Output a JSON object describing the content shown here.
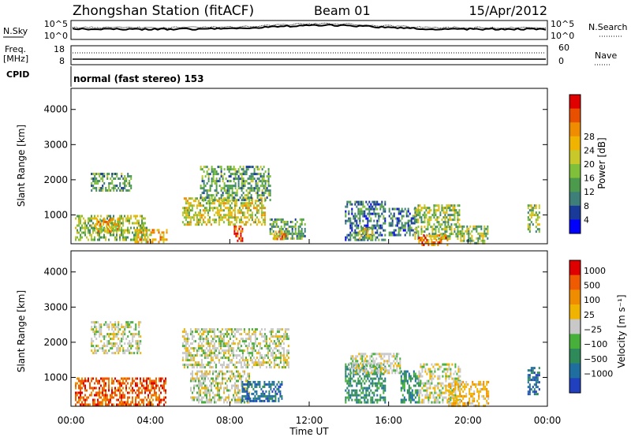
{
  "header": {
    "station": "Zhongshan Station (fitACF)",
    "beam": "Beam 01",
    "date": "15/Apr/2012"
  },
  "top_panels": {
    "nsky_label": "N.Sky",
    "nsky_ticks": [
      "10^5",
      "10^0"
    ],
    "nsearch_label": "N.Search",
    "nsearch_ticks": [
      "10^5",
      "10^0"
    ],
    "freq_label_1": "Freq.",
    "freq_label_2": "[MHz]",
    "freq_ticks": [
      "18",
      "8"
    ],
    "nave_label": "Nave",
    "nave_ticks": [
      "60",
      "0"
    ],
    "cpid_label": "CPID",
    "cpid_text": "normal (fast stereo) 153"
  },
  "colors": {
    "power": [
      "#0000ff",
      "#1a3a9a",
      "#3f7f7a",
      "#4c9a4c",
      "#7fbf3a",
      "#c8c82a",
      "#f0b400",
      "#f08c00",
      "#e85000",
      "#e00000"
    ],
    "velocity": [
      "#2040c0",
      "#1e6ea0",
      "#2f8a5a",
      "#46b03a",
      "#c8c8c8",
      "#f0b400",
      "#f08c00",
      "#f05a00",
      "#e00000"
    ]
  },
  "chart_data": [
    {
      "type": "heatmap",
      "name": "power",
      "ylabel": "Slant Range [km]",
      "ylim": [
        180,
        4600
      ],
      "yticks": [
        "1000",
        "2000",
        "3000",
        "4000"
      ],
      "ytick_values": [
        1000,
        2000,
        3000,
        4000
      ],
      "xlim": [
        0,
        24
      ],
      "colorbar": {
        "label": "Power [dB]",
        "tick_labels": [
          "4",
          "8",
          "12",
          "16",
          "20",
          "24",
          "28"
        ],
        "tick_values": [
          4,
          8,
          12,
          16,
          20,
          24,
          28
        ],
        "range": [
          0,
          31
        ]
      },
      "regions": [
        {
          "t": [
            0.2,
            3.8
          ],
          "r": [
            300,
            1000
          ],
          "v": 14
        },
        {
          "t": [
            1.0,
            3.0
          ],
          "r": [
            1700,
            2200
          ],
          "v": 9
        },
        {
          "t": [
            1.2,
            2.4
          ],
          "r": [
            500,
            900
          ],
          "v": 22
        },
        {
          "t": [
            3.2,
            4.8
          ],
          "r": [
            250,
            600
          ],
          "v": 19
        },
        {
          "t": [
            5.6,
            9.8
          ],
          "r": [
            700,
            1500
          ],
          "v": 16
        },
        {
          "t": [
            6.5,
            10.0
          ],
          "r": [
            1400,
            2400
          ],
          "v": 9
        },
        {
          "t": [
            8.2,
            8.6
          ],
          "r": [
            250,
            700
          ],
          "v": 27
        },
        {
          "t": [
            10.0,
            11.8
          ],
          "r": [
            300,
            900
          ],
          "v": 10
        },
        {
          "t": [
            10.2,
            10.8
          ],
          "r": [
            300,
            550
          ],
          "v": 24
        },
        {
          "t": [
            13.8,
            15.8
          ],
          "r": [
            300,
            1400
          ],
          "v": 8
        },
        {
          "t": [
            14.5,
            15.2
          ],
          "r": [
            350,
            700
          ],
          "v": 18
        },
        {
          "t": [
            16.0,
            17.4
          ],
          "r": [
            400,
            1200
          ],
          "v": 8
        },
        {
          "t": [
            17.3,
            19.6
          ],
          "r": [
            300,
            1300
          ],
          "v": 14
        },
        {
          "t": [
            17.5,
            19.0
          ],
          "r": [
            180,
            450
          ],
          "v": 25
        },
        {
          "t": [
            19.6,
            21.0
          ],
          "r": [
            180,
            700
          ],
          "v": 15
        },
        {
          "t": [
            23.0,
            23.6
          ],
          "r": [
            500,
            1300
          ],
          "v": 13
        }
      ]
    },
    {
      "type": "heatmap",
      "name": "velocity",
      "ylabel": "Slant Range [km]",
      "ylim": [
        180,
        4600
      ],
      "yticks": [
        "1000",
        "2000",
        "3000",
        "4000"
      ],
      "ytick_values": [
        1000,
        2000,
        3000,
        4000
      ],
      "xlim": [
        0,
        24
      ],
      "xlabel": "Time UT",
      "xticks": [
        "00:00",
        "04:00",
        "08:00",
        "12:00",
        "16:00",
        "20:00",
        "00:00"
      ],
      "xtick_values": [
        0,
        4,
        8,
        12,
        16,
        20,
        24
      ],
      "colorbar": {
        "label": "Velocity [m s⁻¹]",
        "tick_labels": [
          "1000",
          "500",
          "100",
          "25",
          "−25",
          "−100",
          "−500",
          "−1000"
        ]
      },
      "regions": [
        {
          "t": [
            0.2,
            4.8
          ],
          "r": [
            250,
            1000
          ],
          "c": 7
        },
        {
          "t": [
            1.0,
            3.5
          ],
          "r": [
            1700,
            2600
          ],
          "c": 4
        },
        {
          "t": [
            5.6,
            11.0
          ],
          "r": [
            1300,
            2400
          ],
          "c": 4
        },
        {
          "t": [
            6.0,
            9.0
          ],
          "r": [
            300,
            1200
          ],
          "c": 4
        },
        {
          "t": [
            8.6,
            10.6
          ],
          "r": [
            350,
            900
          ],
          "c": 1
        },
        {
          "t": [
            13.8,
            15.8
          ],
          "r": [
            300,
            1400
          ],
          "c": 2
        },
        {
          "t": [
            14.0,
            16.6
          ],
          "r": [
            1100,
            1700
          ],
          "c": 4
        },
        {
          "t": [
            16.6,
            17.6
          ],
          "r": [
            300,
            1200
          ],
          "c": 2
        },
        {
          "t": [
            17.5,
            19.6
          ],
          "r": [
            300,
            1400
          ],
          "c": 4
        },
        {
          "t": [
            19.0,
            21.0
          ],
          "r": [
            180,
            900
          ],
          "c": 5
        },
        {
          "t": [
            23.0,
            23.6
          ],
          "r": [
            500,
            1300
          ],
          "c": 1
        }
      ]
    }
  ]
}
